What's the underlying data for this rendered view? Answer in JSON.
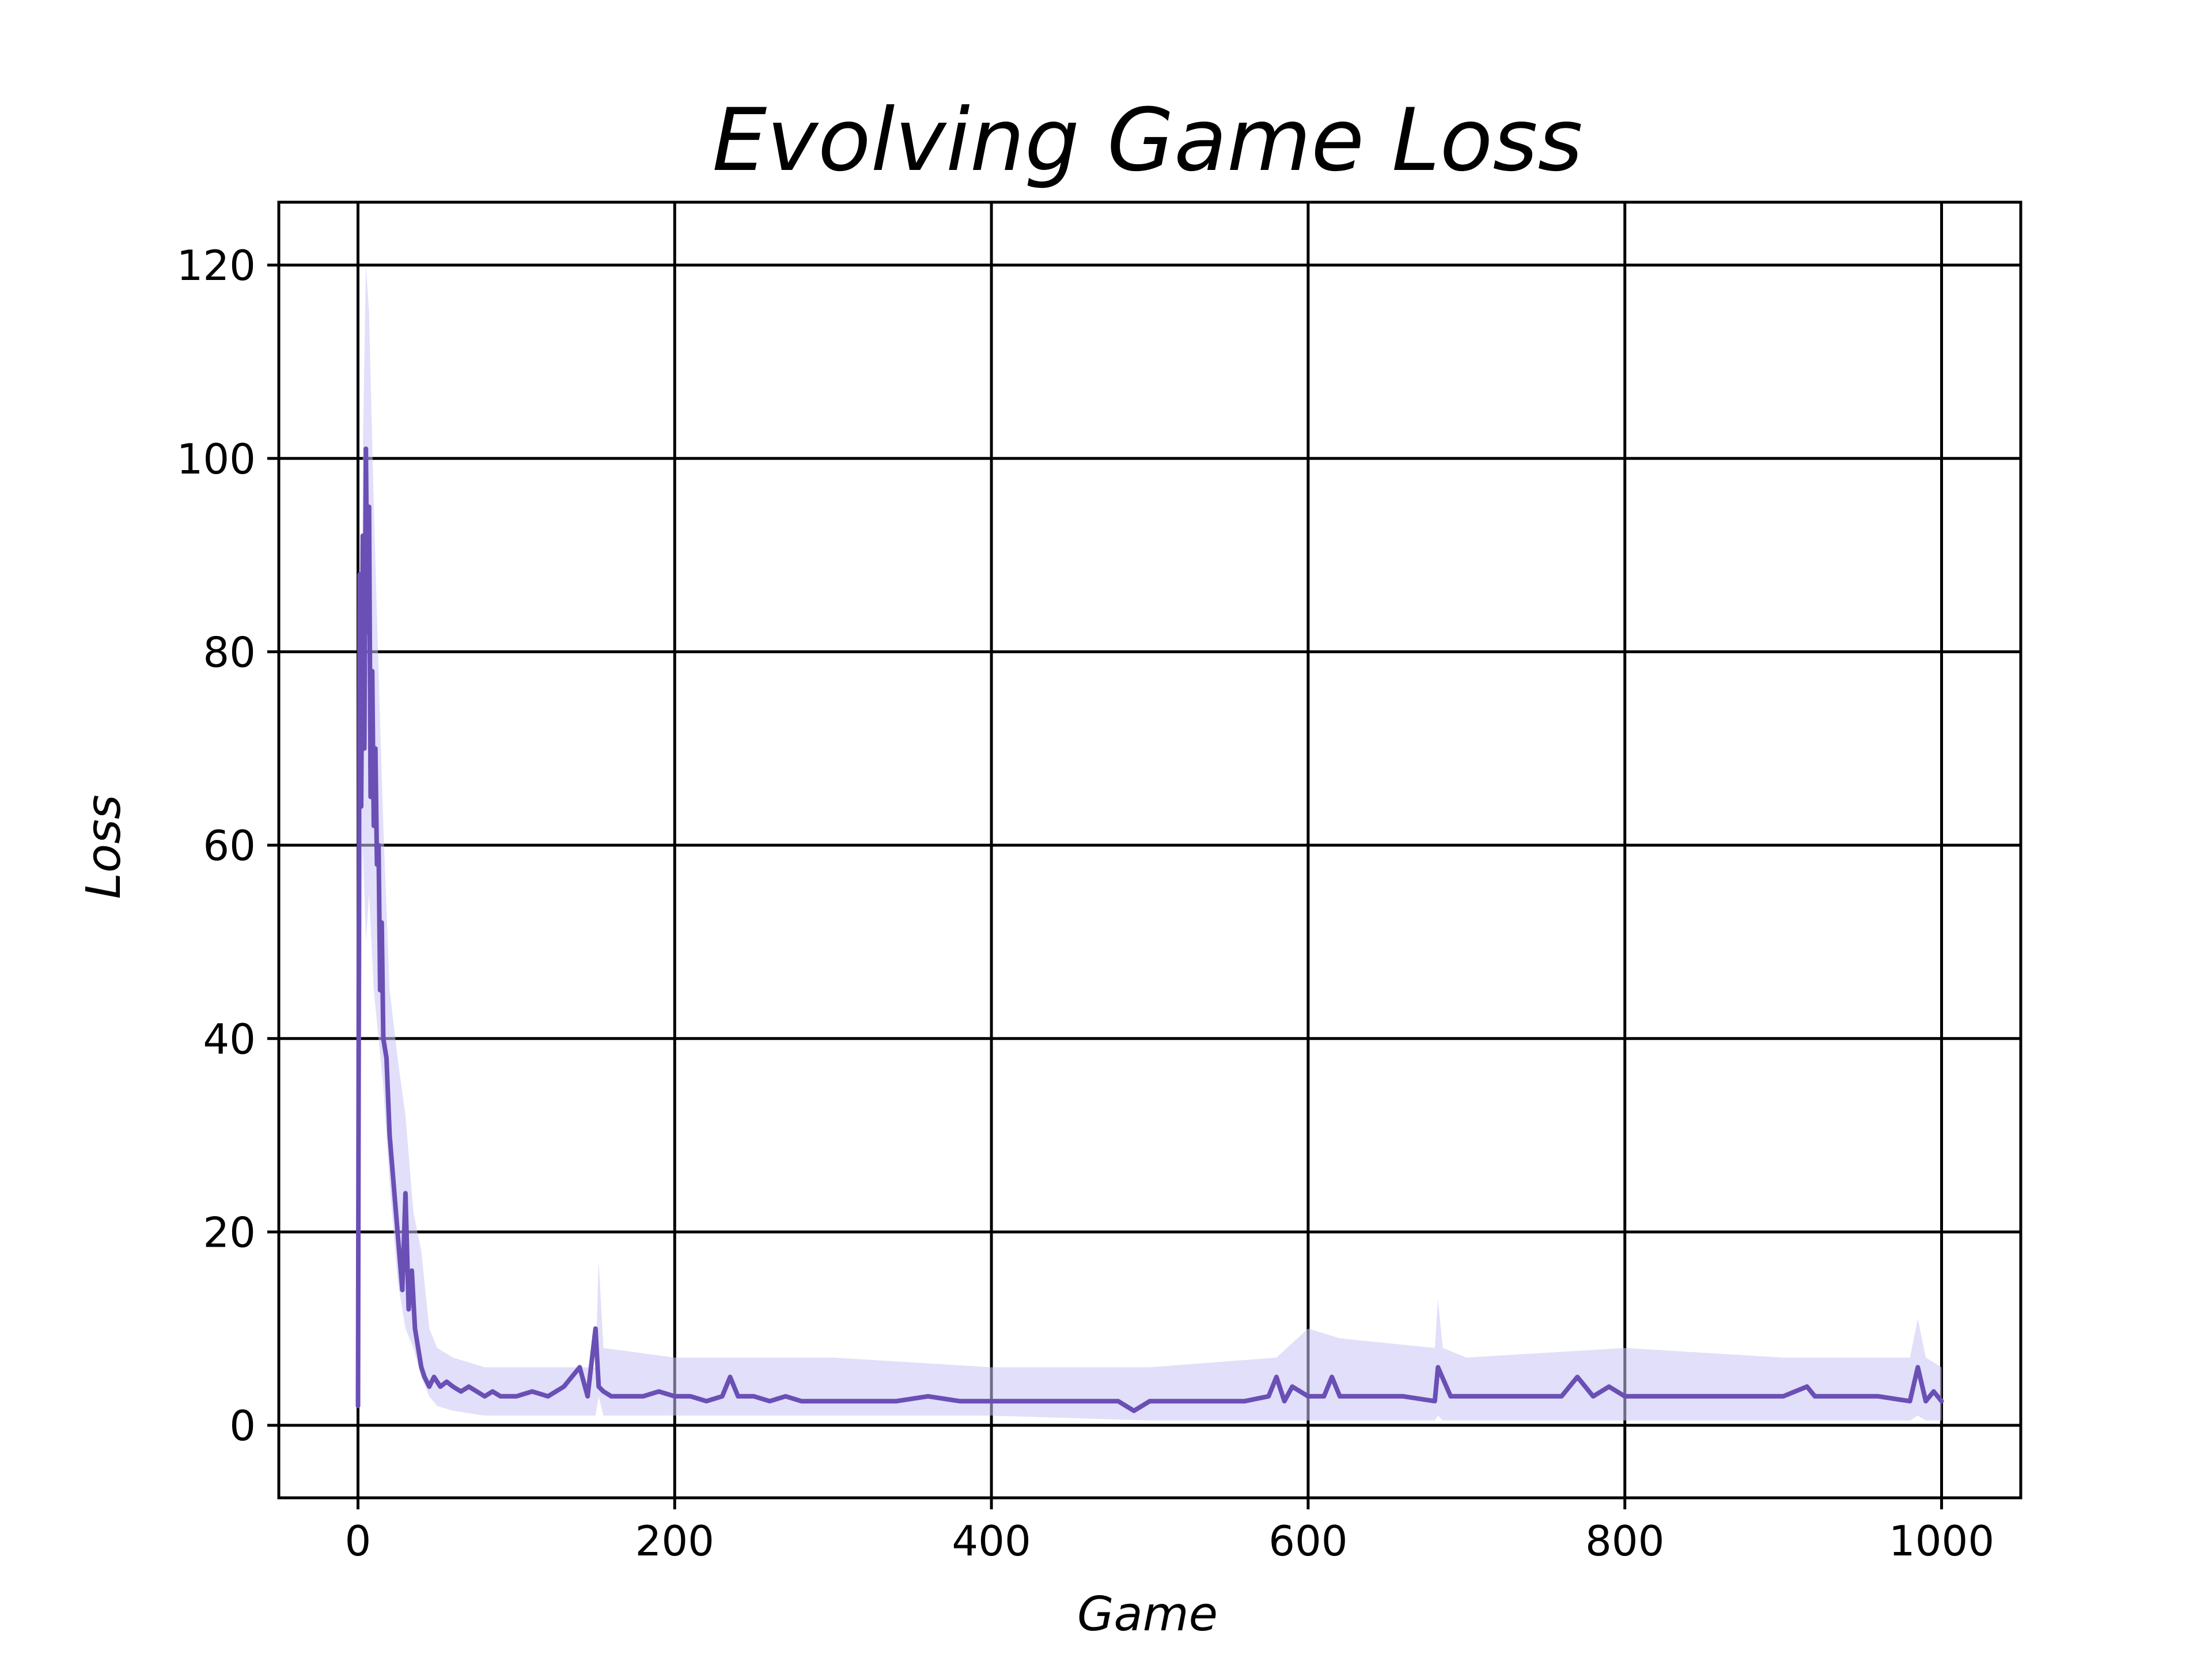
{
  "chart_data": {
    "type": "line",
    "title": "Evolving Game Loss",
    "xlabel": "Game",
    "ylabel": "Loss",
    "xlim": [
      -50,
      1050
    ],
    "ylim": [
      -7.5,
      126.5
    ],
    "xticks": [
      0,
      200,
      400,
      600,
      800,
      1000
    ],
    "yticks": [
      0,
      20,
      40,
      60,
      80,
      100,
      120
    ],
    "xtick_labels": [
      "0",
      "200",
      "400",
      "600",
      "800",
      "1000"
    ],
    "ytick_labels": [
      "0",
      "20",
      "40",
      "60",
      "80",
      "100",
      "120"
    ],
    "grid": true,
    "legend": "none",
    "colors": {
      "line": "#6a4fb5",
      "band": "#c8c4f4",
      "grid": "#000000",
      "axes": "#000000"
    },
    "series": [
      {
        "kind": "mean-line",
        "x": [
          0,
          1,
          2,
          3,
          4,
          5,
          6,
          7,
          8,
          9,
          10,
          11,
          12,
          13,
          14,
          15,
          16,
          18,
          20,
          22,
          24,
          26,
          28,
          30,
          32,
          34,
          36,
          38,
          40,
          42,
          45,
          48,
          52,
          56,
          60,
          65,
          70,
          75,
          80,
          85,
          90,
          95,
          100,
          110,
          120,
          130,
          140,
          145,
          150,
          152,
          155,
          160,
          170,
          180,
          190,
          200,
          210,
          220,
          230,
          235,
          240,
          250,
          260,
          270,
          280,
          290,
          300,
          320,
          340,
          360,
          380,
          400,
          420,
          440,
          460,
          480,
          490,
          500,
          520,
          540,
          560,
          575,
          580,
          585,
          590,
          600,
          610,
          615,
          620,
          640,
          660,
          680,
          682,
          690,
          700,
          720,
          740,
          760,
          770,
          780,
          790,
          800,
          820,
          840,
          860,
          880,
          900,
          915,
          920,
          940,
          960,
          980,
          985,
          990,
          995,
          1000
        ],
        "y": [
          2,
          88,
          64,
          92,
          70,
          101,
          82,
          95,
          65,
          78,
          62,
          70,
          58,
          60,
          45,
          52,
          40,
          38,
          30,
          26,
          22,
          18,
          14,
          24,
          12,
          16,
          10,
          8,
          6,
          5,
          4,
          5,
          4,
          4.5,
          4,
          3.5,
          4,
          3.5,
          3,
          3.5,
          3,
          3,
          3,
          3.5,
          3,
          4,
          6,
          3,
          10,
          4,
          3.5,
          3,
          3,
          3,
          3.5,
          3,
          3,
          2.5,
          3,
          5,
          3,
          3,
          2.5,
          3,
          2.5,
          2.5,
          2.5,
          2.5,
          2.5,
          3,
          2.5,
          2.5,
          2.5,
          2.5,
          2.5,
          2.5,
          1.5,
          2.5,
          2.5,
          2.5,
          2.5,
          3,
          5,
          2.5,
          4,
          3,
          3,
          5,
          3,
          3,
          3,
          2.5,
          6,
          3,
          3,
          3,
          3,
          3,
          5,
          3,
          4,
          3,
          3,
          3,
          3,
          3,
          3,
          4,
          3,
          3,
          3,
          2.5,
          6,
          2.5,
          3.5,
          2.5
        ]
      },
      {
        "kind": "band",
        "x": [
          0,
          3,
          5,
          7,
          10,
          13,
          16,
          20,
          25,
          30,
          35,
          40,
          45,
          50,
          60,
          80,
          100,
          150,
          152,
          155,
          200,
          300,
          400,
          500,
          580,
          600,
          620,
          680,
          682,
          685,
          700,
          800,
          900,
          980,
          985,
          990,
          1000
        ],
        "y_upper": [
          3,
          100,
          120,
          115,
          95,
          78,
          62,
          45,
          38,
          32,
          22,
          18,
          10,
          8,
          7,
          6,
          6,
          6,
          17,
          8,
          7,
          7,
          6,
          6,
          7,
          10,
          9,
          8,
          13,
          8,
          7,
          8,
          7,
          7,
          11,
          7,
          6
        ],
        "y_lower": [
          1,
          60,
          50,
          55,
          45,
          40,
          35,
          25,
          15,
          10,
          8,
          5,
          3,
          2,
          1.5,
          1,
          1,
          1,
          3,
          1,
          1,
          1,
          1,
          0.5,
          0.5,
          0.5,
          0.5,
          0.5,
          1,
          0.5,
          0.5,
          0.5,
          0.5,
          0.5,
          1,
          0.5,
          0.5
        ]
      }
    ]
  }
}
